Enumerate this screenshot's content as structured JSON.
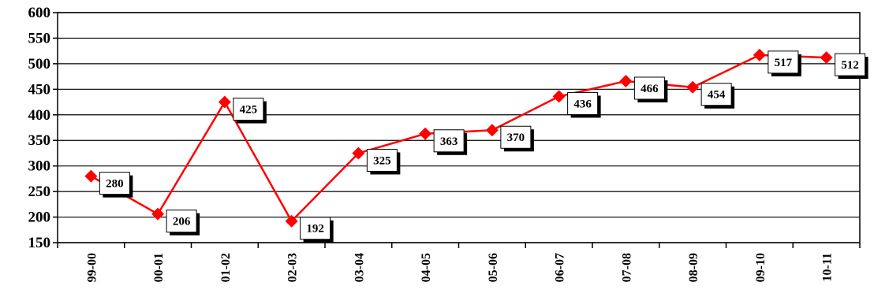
{
  "chart_data": {
    "type": "line",
    "title": "",
    "xlabel": "",
    "ylabel": "",
    "categories": [
      "99-00",
      "00-01",
      "01-02",
      "02-03",
      "03-04",
      "04-05",
      "05-06",
      "06-07",
      "07-08",
      "08-09",
      "09-10",
      "10-11"
    ],
    "series": [
      {
        "values": [
          280,
          206,
          425,
          192,
          325,
          363,
          370,
          436,
          466,
          454,
          517,
          512
        ],
        "color": "#ff0000",
        "marker": "diamond"
      }
    ],
    "data_labels": [
      "280",
      "206",
      "425",
      "192",
      "325",
      "363",
      "370",
      "436",
      "466",
      "454",
      "517",
      "512"
    ],
    "ylim": [
      150,
      600
    ],
    "yticks": [
      150,
      200,
      250,
      300,
      350,
      400,
      450,
      500,
      550,
      600
    ],
    "ytick_labels": [
      "150",
      "200",
      "250",
      "300",
      "350",
      "400",
      "450",
      "500",
      "550",
      "600"
    ],
    "grid": true,
    "legend": "none"
  }
}
